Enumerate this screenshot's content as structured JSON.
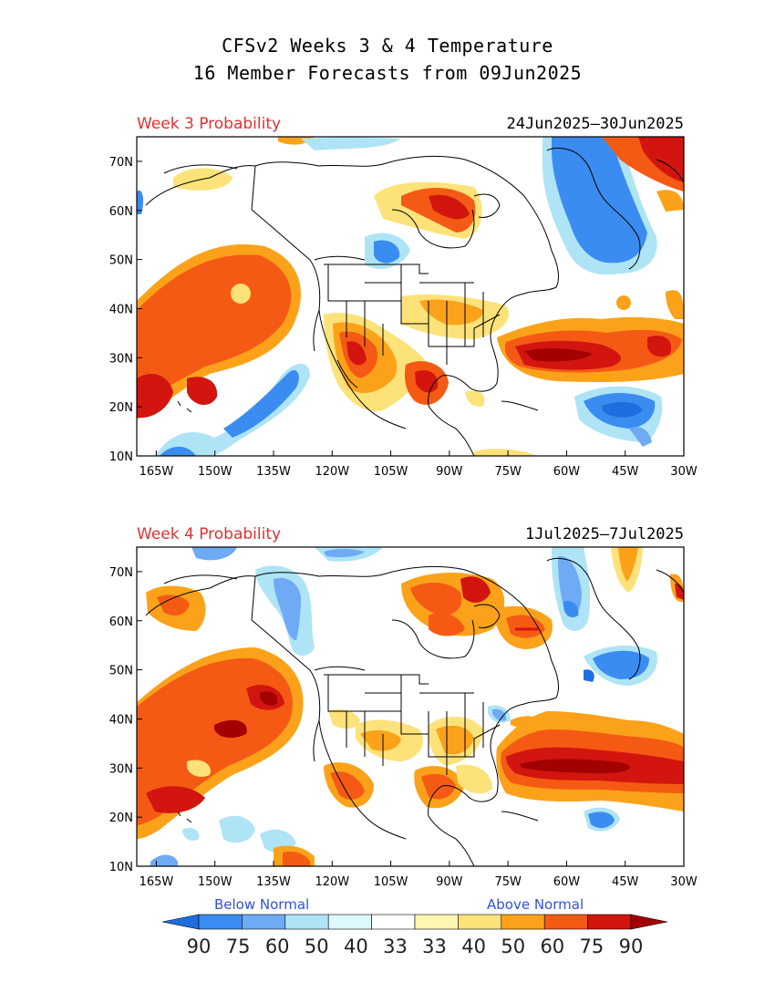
{
  "title_line1": "CFSv2 Weeks 3 & 4 Temperature",
  "title_line2": "16 Member Forecasts from 09Jun2025",
  "panels": [
    {
      "label": "Week 3 Probability",
      "dates": "24Jun2025—30Jun2025"
    },
    {
      "label": "Week 4 Probability",
      "dates": "1Jul2025—7Jul2025"
    }
  ],
  "axes": {
    "lat_ticks": [
      "70N",
      "60N",
      "50N",
      "40N",
      "30N",
      "20N",
      "10N"
    ],
    "lon_ticks": [
      "165W",
      "150W",
      "135W",
      "120W",
      "105W",
      "90W",
      "75W",
      "60W",
      "45W",
      "30W"
    ],
    "lon_range": [
      -170,
      -30
    ],
    "lat_range": [
      10,
      75
    ]
  },
  "legend": {
    "below_label": "Below Normal",
    "above_label": "Above Normal",
    "values": [
      "90",
      "75",
      "60",
      "50",
      "40",
      "33",
      "33",
      "40",
      "50",
      "60",
      "75",
      "90"
    ],
    "colors": [
      "#1e6ee0",
      "#3a8cf0",
      "#6faaf5",
      "#aee4f5",
      "#def9fb",
      "#ffffff",
      "#fff7b0",
      "#fde27a",
      "#fba21a",
      "#f55a14",
      "#d2150e",
      "#a30000"
    ]
  }
}
